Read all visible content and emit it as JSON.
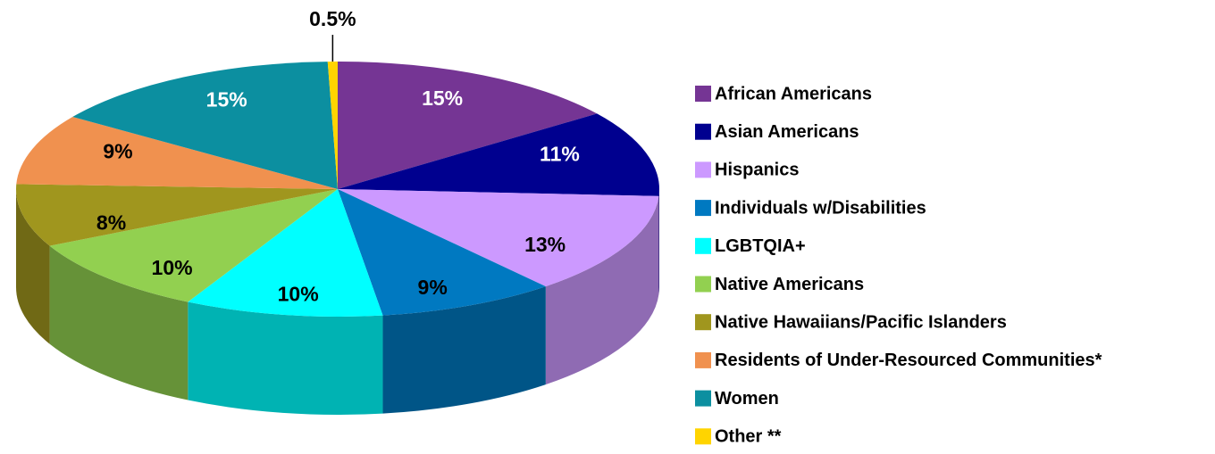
{
  "chart_data": {
    "type": "pie3d",
    "categories": [
      "African Americans",
      "Asian Americans",
      "Hispanics",
      "Individuals w/Disabilities",
      "LGBTQIA+",
      "Native Americans",
      "Native Hawaiians/Pacific Islanders",
      "Residents of Under-Resourced Communities*",
      "Women",
      "Other **"
    ],
    "values": [
      15,
      11,
      13,
      9,
      10,
      10,
      8,
      9,
      15,
      0.5
    ],
    "value_labels": [
      "15%",
      "11%",
      "13%",
      "9%",
      "10%",
      "10%",
      "8%",
      "9%",
      "15%",
      "0.5%"
    ],
    "colors": [
      "#753594",
      "#00008f",
      "#cc99ff",
      "#0079c1",
      "#00ffff",
      "#92d050",
      "#a0961e",
      "#f0914f",
      "#0c8fa0",
      "#ffd400"
    ],
    "legend": "right"
  }
}
